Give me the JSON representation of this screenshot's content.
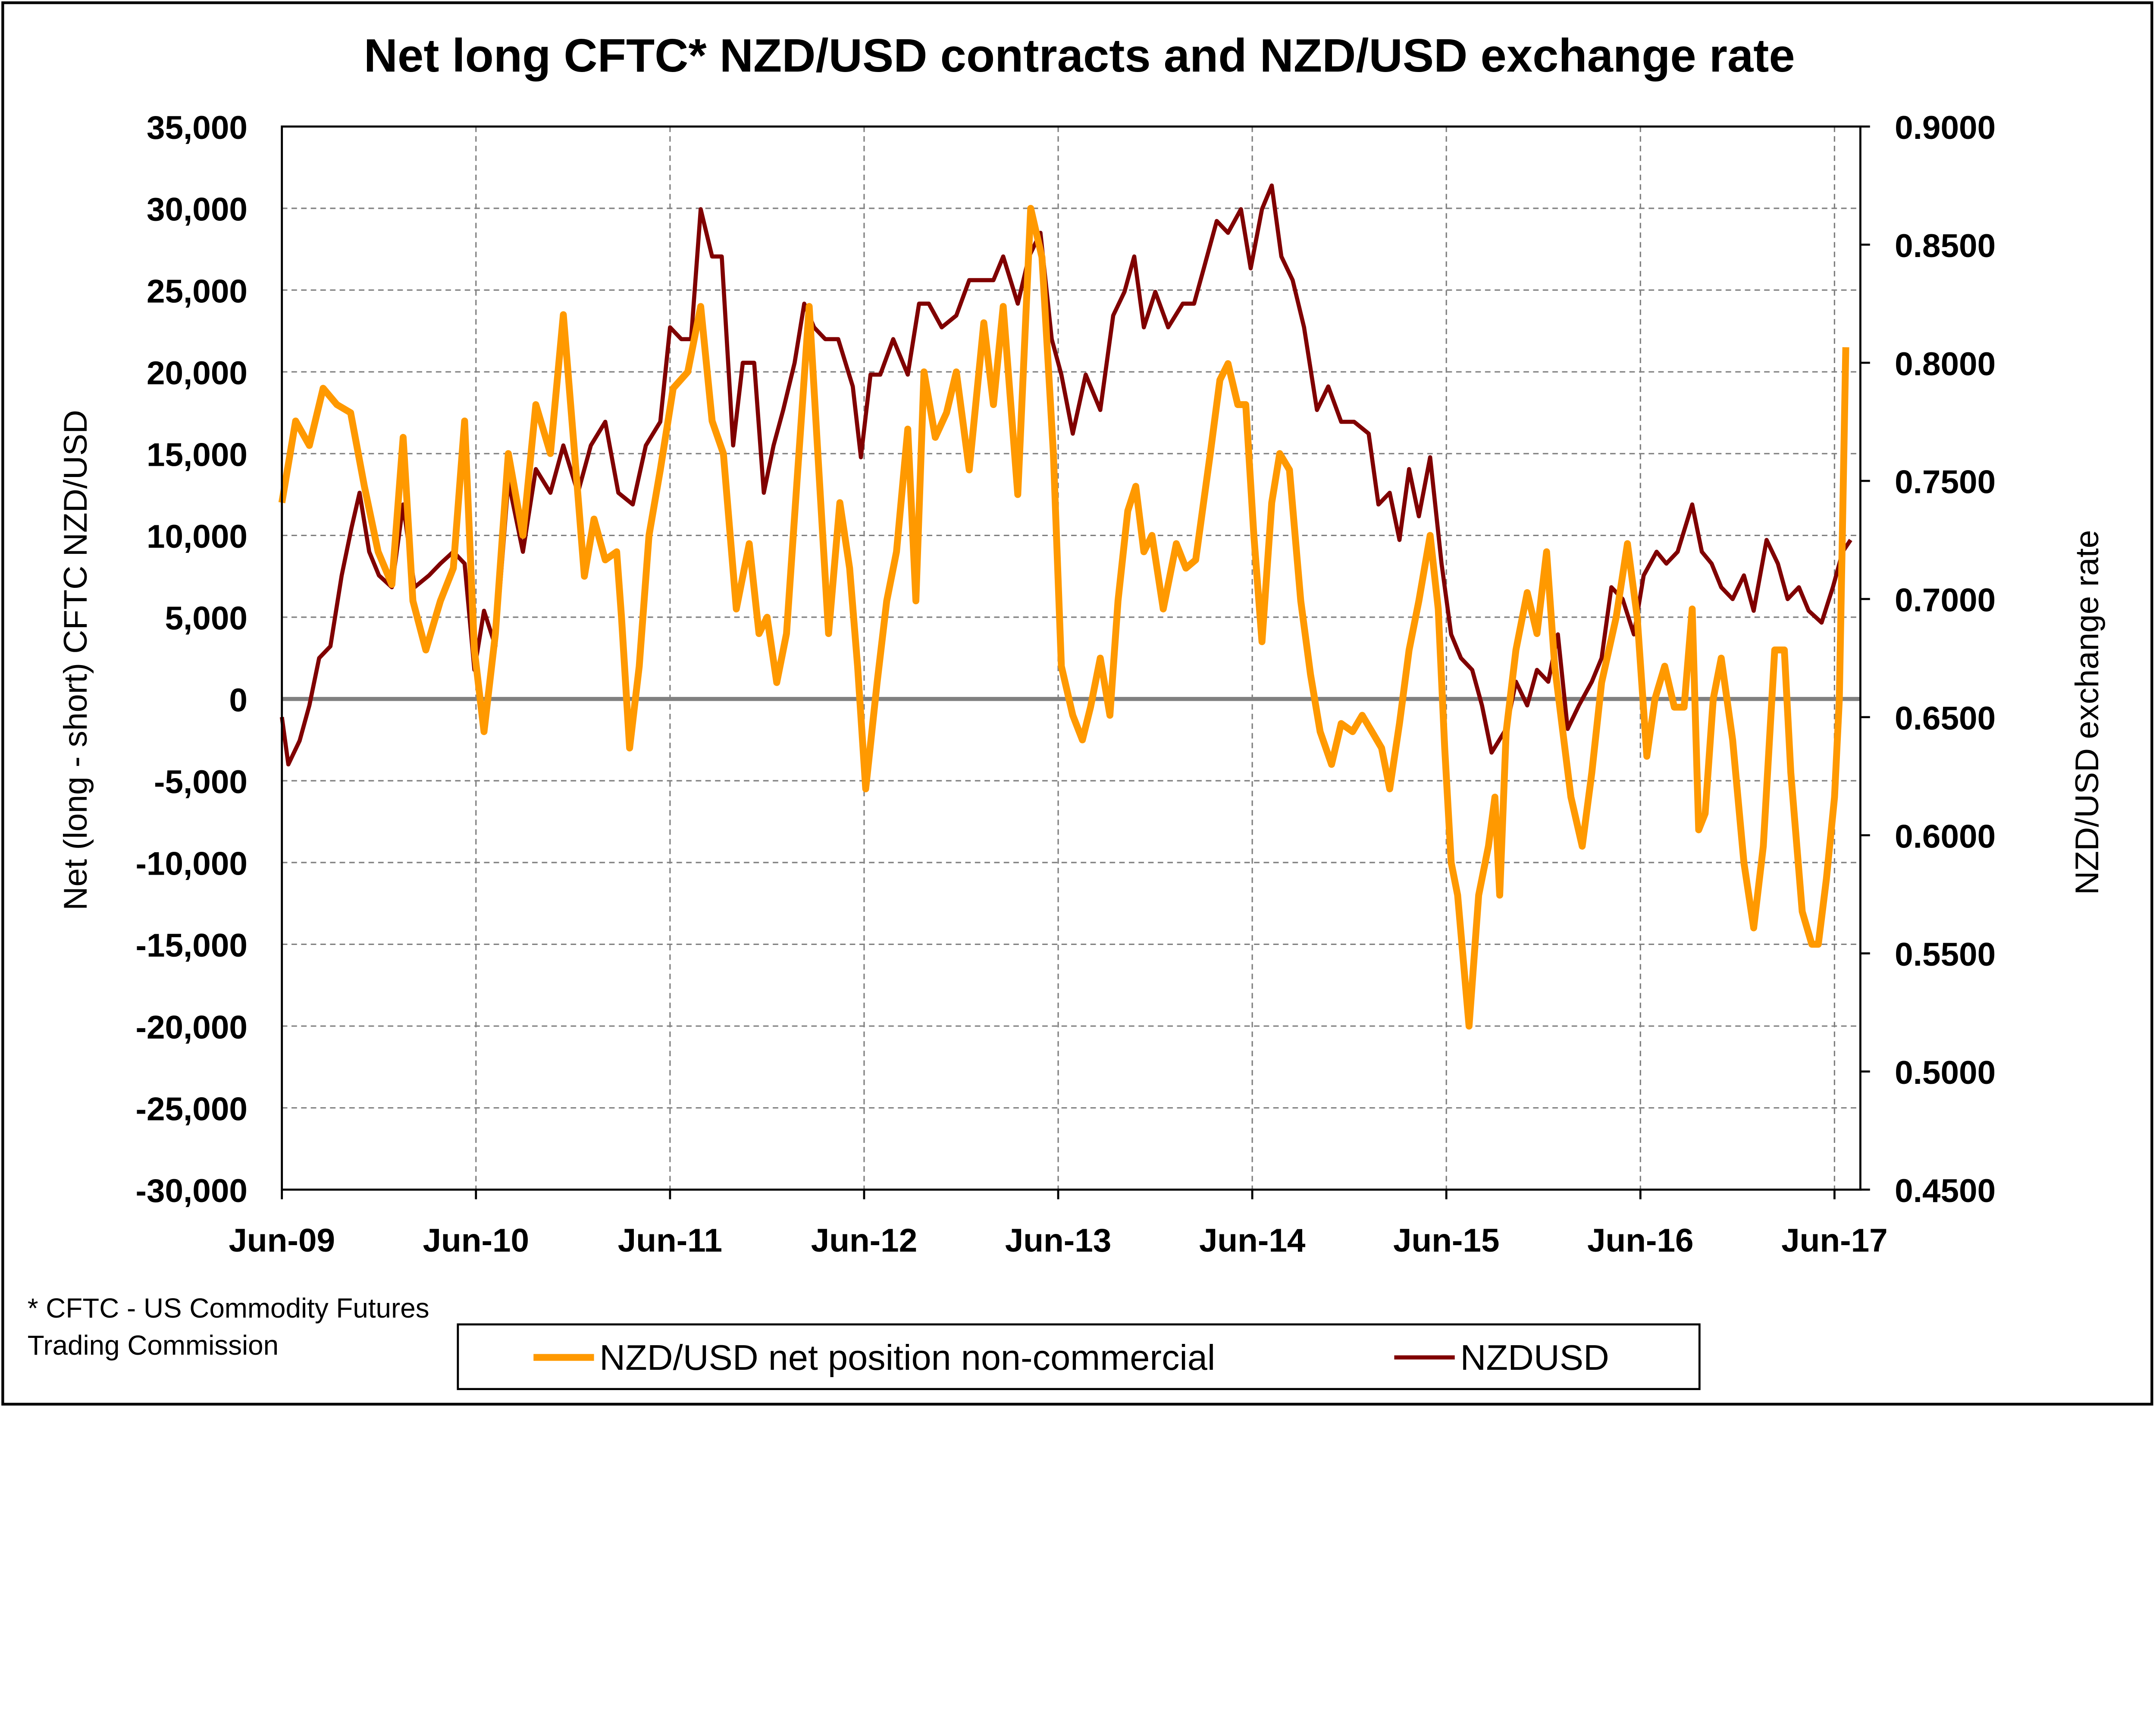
{
  "chart_data": {
    "type": "line",
    "title": "Net long CFTC* NZD/USD contracts and NZD/USD exchange rate",
    "ylabel": "Net (long - short) CFTC NZD/USD",
    "y2label": "NZD/USD exchange rate",
    "x_unit": "months since Jun-09",
    "xlim": [
      0,
      97.6
    ],
    "x_ticks": [
      0,
      12,
      24,
      36,
      48,
      60,
      72,
      84,
      96
    ],
    "x_tick_labels": [
      "Jun-09",
      "Jun-10",
      "Jun-11",
      "Jun-12",
      "Jun-13",
      "Jun-14",
      "Jun-15",
      "Jun-16",
      "Jun-17"
    ],
    "ylim": [
      -30000,
      35000
    ],
    "y_ticks": [
      35000,
      30000,
      25000,
      20000,
      15000,
      10000,
      5000,
      0,
      -5000,
      -10000,
      -15000,
      -20000,
      -25000,
      -30000
    ],
    "y_tick_labels": [
      "35,000",
      "30,000",
      "25,000",
      "20,000",
      "15,000",
      "10,000",
      "5,000",
      "0",
      "-5,000",
      "-10,000",
      "-15,000",
      "-20,000",
      "-25,000",
      "-30,000"
    ],
    "y2lim": [
      0.45,
      0.9
    ],
    "y2_ticks": [
      0.9,
      0.85,
      0.8,
      0.75,
      0.7,
      0.65,
      0.6,
      0.55,
      0.5,
      0.45
    ],
    "y2_tick_labels": [
      "0.9000",
      "0.8500",
      "0.8000",
      "0.7500",
      "0.7000",
      "0.6500",
      "0.6000",
      "0.5500",
      "0.5000",
      "0.4500"
    ],
    "grid": true,
    "legend_position": "bottom",
    "footnote": [
      "* CFTC - US Commodity Futures",
      "Trading Commission"
    ],
    "colors": {
      "net": "#FF9900",
      "fx": "#800000",
      "zero": "#808080"
    },
    "series": [
      {
        "name": "NZD/USD net position non-commercial",
        "axis": "left",
        "points": [
          [
            0,
            12000
          ],
          [
            0.85,
            17000
          ],
          [
            1.7,
            15500
          ],
          [
            2.55,
            19000
          ],
          [
            3.4,
            18000
          ],
          [
            4.25,
            17500
          ],
          [
            5.1,
            13000
          ],
          [
            5.95,
            9000
          ],
          [
            6.8,
            7000
          ],
          [
            7.5,
            16000
          ],
          [
            8.1,
            6000
          ],
          [
            8.9,
            3000
          ],
          [
            9.8,
            6000
          ],
          [
            10.6,
            8000
          ],
          [
            11.3,
            17000
          ],
          [
            11.9,
            3000
          ],
          [
            12.5,
            -2000
          ],
          [
            13.2,
            4000
          ],
          [
            14.0,
            15000
          ],
          [
            14.9,
            10000
          ],
          [
            15.7,
            18000
          ],
          [
            16.6,
            15000
          ],
          [
            17.4,
            23500
          ],
          [
            18.1,
            15000
          ],
          [
            18.7,
            7500
          ],
          [
            19.3,
            11000
          ],
          [
            20.0,
            8500
          ],
          [
            20.7,
            9000
          ],
          [
            21.0,
            5000
          ],
          [
            21.5,
            -3000
          ],
          [
            22.1,
            2000
          ],
          [
            22.7,
            10000
          ],
          [
            23.4,
            14000
          ],
          [
            24.2,
            19000
          ],
          [
            25.1,
            20000
          ],
          [
            25.9,
            24000
          ],
          [
            26.6,
            17000
          ],
          [
            27.3,
            15000
          ],
          [
            28.1,
            5500
          ],
          [
            28.9,
            9500
          ],
          [
            29.5,
            4000
          ],
          [
            30.0,
            5000
          ],
          [
            30.6,
            1000
          ],
          [
            31.2,
            4000
          ],
          [
            31.9,
            14000
          ],
          [
            32.6,
            24000
          ],
          [
            33.2,
            14000
          ],
          [
            33.8,
            4000
          ],
          [
            34.5,
            12000
          ],
          [
            35.1,
            8000
          ],
          [
            35.6,
            2000
          ],
          [
            36.1,
            -5500
          ],
          [
            36.8,
            1000
          ],
          [
            37.4,
            6000
          ],
          [
            38.0,
            9000
          ],
          [
            38.7,
            16500
          ],
          [
            39.2,
            6000
          ],
          [
            39.7,
            20000
          ],
          [
            40.4,
            16000
          ],
          [
            41.1,
            17500
          ],
          [
            41.7,
            20000
          ],
          [
            42.5,
            14000
          ],
          [
            43.4,
            23000
          ],
          [
            44.0,
            18000
          ],
          [
            44.6,
            24000
          ],
          [
            45.5,
            12500
          ],
          [
            46.3,
            30000
          ],
          [
            47.0,
            27000
          ],
          [
            47.7,
            15000
          ],
          [
            48.2,
            2000
          ],
          [
            48.9,
            -1000
          ],
          [
            49.5,
            -2500
          ],
          [
            50.0,
            -500
          ],
          [
            50.6,
            2500
          ],
          [
            51.2,
            -1000
          ],
          [
            51.7,
            6000
          ],
          [
            52.3,
            11500
          ],
          [
            52.8,
            13000
          ],
          [
            53.3,
            9000
          ],
          [
            53.8,
            10000
          ],
          [
            54.5,
            5500
          ],
          [
            55.3,
            9500
          ],
          [
            55.9,
            8000
          ],
          [
            56.5,
            8500
          ],
          [
            57.4,
            15000
          ],
          [
            58.0,
            19500
          ],
          [
            58.5,
            20500
          ],
          [
            59.1,
            18000
          ],
          [
            59.6,
            18000
          ],
          [
            60.1,
            10000
          ],
          [
            60.6,
            3500
          ],
          [
            61.2,
            12000
          ],
          [
            61.7,
            15000
          ],
          [
            62.3,
            14000
          ],
          [
            63.0,
            6000
          ],
          [
            63.6,
            1500
          ],
          [
            64.2,
            -2000
          ],
          [
            64.9,
            -4000
          ],
          [
            65.5,
            -1500
          ],
          [
            66.2,
            -2000
          ],
          [
            66.8,
            -1000
          ],
          [
            67.4,
            -2000
          ],
          [
            68.0,
            -3000
          ],
          [
            68.5,
            -5500
          ],
          [
            69.1,
            -1500
          ],
          [
            69.7,
            3000
          ],
          [
            70.3,
            6000
          ],
          [
            71.0,
            10000
          ],
          [
            71.5,
            5500
          ],
          [
            71.9,
            -3000
          ],
          [
            72.3,
            -10000
          ],
          [
            72.7,
            -12000
          ],
          [
            73.4,
            -20000
          ],
          [
            74.0,
            -12000
          ],
          [
            74.6,
            -9000
          ],
          [
            75.0,
            -6000
          ],
          [
            75.3,
            -12000
          ],
          [
            75.7,
            -2000
          ],
          [
            76.3,
            3000
          ],
          [
            77.0,
            6500
          ],
          [
            77.6,
            4000
          ],
          [
            78.2,
            9000
          ],
          [
            78.7,
            2000
          ],
          [
            79.2,
            -2000
          ],
          [
            79.7,
            -6000
          ],
          [
            80.4,
            -9000
          ],
          [
            81.0,
            -4500
          ],
          [
            81.6,
            1000
          ],
          [
            82.5,
            5000
          ],
          [
            83.2,
            9500
          ],
          [
            83.8,
            5000
          ],
          [
            84.4,
            -3500
          ],
          [
            84.9,
            0
          ],
          [
            85.5,
            2000
          ],
          [
            86.1,
            -500
          ],
          [
            86.7,
            -500
          ],
          [
            87.2,
            5500
          ],
          [
            87.6,
            -8000
          ],
          [
            88.0,
            -7000
          ],
          [
            88.5,
            0
          ],
          [
            89.0,
            2500
          ],
          [
            89.7,
            -2500
          ],
          [
            90.4,
            -10000
          ],
          [
            91.0,
            -14000
          ],
          [
            91.6,
            -9000
          ],
          [
            92.3,
            3000
          ],
          [
            92.9,
            3000
          ],
          [
            93.3,
            -4500
          ],
          [
            94.0,
            -13000
          ],
          [
            94.6,
            -15000
          ],
          [
            95.0,
            -15000
          ],
          [
            95.5,
            -11000
          ],
          [
            96.0,
            -6000
          ],
          [
            96.3,
            0
          ],
          [
            96.7,
            21500
          ]
        ]
      },
      {
        "name": "NZDUSD",
        "axis": "right",
        "points": [
          [
            0,
            0.65
          ],
          [
            0.4,
            0.63
          ],
          [
            1.1,
            0.64
          ],
          [
            1.7,
            0.655
          ],
          [
            2.3,
            0.675
          ],
          [
            3.0,
            0.68
          ],
          [
            3.7,
            0.71
          ],
          [
            4.3,
            0.73
          ],
          [
            4.8,
            0.745
          ],
          [
            5.4,
            0.72
          ],
          [
            6.0,
            0.71
          ],
          [
            6.8,
            0.705
          ],
          [
            7.5,
            0.74
          ],
          [
            8.2,
            0.705
          ],
          [
            9.1,
            0.71
          ],
          [
            9.8,
            0.715
          ],
          [
            10.6,
            0.72
          ],
          [
            11.3,
            0.715
          ],
          [
            11.9,
            0.67
          ],
          [
            12.5,
            0.695
          ],
          [
            13.2,
            0.68
          ],
          [
            14.0,
            0.75
          ],
          [
            14.9,
            0.72
          ],
          [
            15.7,
            0.755
          ],
          [
            16.6,
            0.745
          ],
          [
            17.4,
            0.765
          ],
          [
            18.3,
            0.745
          ],
          [
            19.1,
            0.765
          ],
          [
            20.0,
            0.775
          ],
          [
            20.8,
            0.745
          ],
          [
            21.7,
            0.74
          ],
          [
            22.5,
            0.765
          ],
          [
            23.4,
            0.775
          ],
          [
            24.0,
            0.815
          ],
          [
            24.7,
            0.81
          ],
          [
            25.3,
            0.81
          ],
          [
            25.9,
            0.865
          ],
          [
            26.6,
            0.845
          ],
          [
            27.2,
            0.845
          ],
          [
            27.9,
            0.765
          ],
          [
            28.5,
            0.8
          ],
          [
            29.2,
            0.8
          ],
          [
            29.8,
            0.745
          ],
          [
            30.4,
            0.765
          ],
          [
            31.0,
            0.78
          ],
          [
            31.7,
            0.8
          ],
          [
            32.3,
            0.825
          ],
          [
            32.9,
            0.815
          ],
          [
            33.6,
            0.81
          ],
          [
            34.4,
            0.81
          ],
          [
            35.3,
            0.79
          ],
          [
            35.8,
            0.76
          ],
          [
            36.4,
            0.795
          ],
          [
            37.0,
            0.795
          ],
          [
            37.8,
            0.81
          ],
          [
            38.7,
            0.795
          ],
          [
            39.4,
            0.825
          ],
          [
            40.0,
            0.825
          ],
          [
            40.8,
            0.815
          ],
          [
            41.7,
            0.82
          ],
          [
            42.5,
            0.835
          ],
          [
            43.4,
            0.835
          ],
          [
            44.0,
            0.835
          ],
          [
            44.6,
            0.845
          ],
          [
            45.5,
            0.825
          ],
          [
            46.2,
            0.845
          ],
          [
            46.9,
            0.855
          ],
          [
            47.6,
            0.81
          ],
          [
            48.2,
            0.795
          ],
          [
            48.9,
            0.77
          ],
          [
            49.7,
            0.795
          ],
          [
            50.6,
            0.78
          ],
          [
            51.4,
            0.82
          ],
          [
            52.1,
            0.83
          ],
          [
            52.7,
            0.845
          ],
          [
            53.3,
            0.815
          ],
          [
            54.0,
            0.83
          ],
          [
            54.8,
            0.815
          ],
          [
            55.7,
            0.825
          ],
          [
            56.4,
            0.825
          ],
          [
            57.0,
            0.84
          ],
          [
            57.8,
            0.86
          ],
          [
            58.5,
            0.855
          ],
          [
            59.3,
            0.865
          ],
          [
            59.9,
            0.84
          ],
          [
            60.6,
            0.865
          ],
          [
            61.2,
            0.875
          ],
          [
            61.8,
            0.845
          ],
          [
            62.5,
            0.835
          ],
          [
            63.2,
            0.815
          ],
          [
            64.0,
            0.78
          ],
          [
            64.7,
            0.79
          ],
          [
            65.5,
            0.775
          ],
          [
            66.3,
            0.775
          ],
          [
            67.2,
            0.77
          ],
          [
            67.8,
            0.74
          ],
          [
            68.5,
            0.745
          ],
          [
            69.1,
            0.725
          ],
          [
            69.7,
            0.755
          ],
          [
            70.3,
            0.735
          ],
          [
            71.0,
            0.76
          ],
          [
            71.7,
            0.715
          ],
          [
            72.3,
            0.685
          ],
          [
            72.9,
            0.675
          ],
          [
            73.6,
            0.67
          ],
          [
            74.2,
            0.655
          ],
          [
            74.8,
            0.635
          ],
          [
            75.7,
            0.645
          ],
          [
            76.3,
            0.665
          ],
          [
            77.0,
            0.655
          ],
          [
            77.6,
            0.67
          ],
          [
            78.3,
            0.665
          ],
          [
            78.9,
            0.685
          ],
          [
            79.5,
            0.645
          ],
          [
            80.2,
            0.655
          ],
          [
            81.0,
            0.665
          ],
          [
            81.6,
            0.675
          ],
          [
            82.2,
            0.705
          ],
          [
            82.9,
            0.7
          ],
          [
            83.6,
            0.685
          ],
          [
            84.2,
            0.71
          ],
          [
            85.0,
            0.72
          ],
          [
            85.6,
            0.715
          ],
          [
            86.3,
            0.72
          ],
          [
            87.2,
            0.74
          ],
          [
            87.8,
            0.72
          ],
          [
            88.4,
            0.715
          ],
          [
            89.0,
            0.705
          ],
          [
            89.7,
            0.7
          ],
          [
            90.4,
            0.71
          ],
          [
            91.0,
            0.695
          ],
          [
            91.8,
            0.725
          ],
          [
            92.5,
            0.715
          ],
          [
            93.1,
            0.7
          ],
          [
            93.8,
            0.705
          ],
          [
            94.4,
            0.695
          ],
          [
            95.2,
            0.69
          ],
          [
            95.9,
            0.705
          ],
          [
            96.5,
            0.72
          ],
          [
            97.0,
            0.725
          ]
        ]
      }
    ]
  }
}
